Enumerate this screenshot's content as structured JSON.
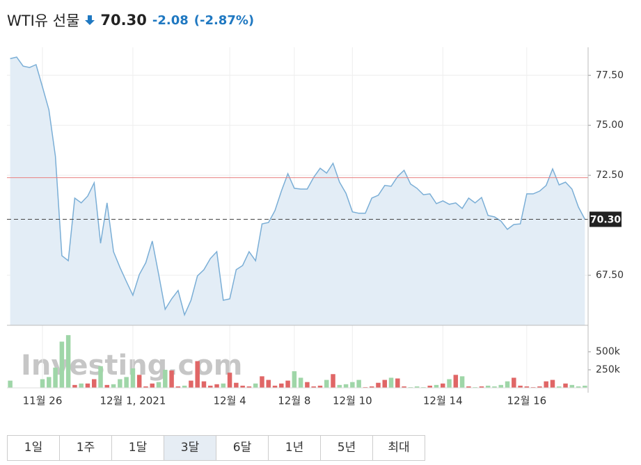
{
  "header": {
    "title": "WTI유 선물",
    "price": "70.30",
    "change": "-2.08",
    "change_pct": "(-2.87%)"
  },
  "chart_data": {
    "type": "area",
    "color": "#7aaed6",
    "fill": "#e3edf6",
    "categories": [
      null,
      null,
      null,
      null,
      null,
      "11월 26",
      null,
      null,
      null,
      null,
      null,
      null,
      null,
      null,
      null,
      null,
      null,
      null,
      null,
      "12월 1, 2021",
      null,
      null,
      null,
      null,
      null,
      null,
      null,
      null,
      null,
      null,
      null,
      null,
      null,
      null,
      "12월 4",
      null,
      null,
      null,
      null,
      null,
      null,
      null,
      null,
      null,
      "12월 8",
      null,
      null,
      null,
      null,
      null,
      null,
      null,
      null,
      "12월 10",
      null,
      null,
      null,
      null,
      null,
      null,
      null,
      null,
      null,
      null,
      null,
      null,
      null,
      "12월 14",
      null,
      null,
      null,
      null,
      null,
      null,
      null,
      null,
      null,
      null,
      null,
      null,
      "12월 16",
      null,
      null,
      null,
      null,
      null,
      null,
      null,
      null,
      null
    ],
    "values": [
      78.33,
      78.41,
      77.96,
      77.89,
      78.03,
      76.92,
      75.77,
      73.45,
      68.48,
      68.23,
      71.36,
      71.12,
      71.46,
      72.12,
      69.1,
      71.12,
      68.68,
      67.89,
      67.19,
      66.5,
      67.54,
      68.13,
      69.21,
      67.54,
      65.8,
      66.32,
      66.74,
      65.52,
      66.25,
      67.47,
      67.78,
      68.34,
      68.68,
      66.25,
      66.32,
      67.78,
      67.99,
      68.68,
      68.23,
      70.07,
      70.14,
      70.73,
      71.71,
      72.58,
      71.85,
      71.81,
      71.81,
      72.4,
      72.85,
      72.61,
      73.1,
      72.16,
      71.6,
      70.67,
      70.6,
      70.6,
      71.36,
      71.5,
      71.99,
      71.95,
      72.44,
      72.75,
      72.06,
      71.85,
      71.53,
      71.57,
      71.08,
      71.22,
      71.05,
      71.12,
      70.84,
      71.36,
      71.12,
      71.39,
      70.49,
      70.42,
      70.21,
      69.8,
      70.04,
      70.07,
      71.57,
      71.57,
      71.71,
      71.99,
      72.82,
      72.02,
      72.16,
      71.81,
      70.91,
      70.3
    ],
    "ylim": [
      65,
      78.9
    ],
    "yticks": [
      {
        "value": 67.5,
        "label": "67.50"
      },
      {
        "value": 72.5,
        "label": "72.50"
      },
      {
        "value": 75,
        "label": "75.00"
      },
      {
        "value": 77.5,
        "label": "77.50"
      }
    ],
    "grid": true,
    "previous_close": 72.38,
    "previous_close_color": "#e88080",
    "last_price": {
      "value": 70.3,
      "label": "70.30"
    },
    "watermark": "Investing.com",
    "volume": {
      "values": [
        100000,
        0,
        0,
        0,
        0,
        120000,
        150000,
        280000,
        640000,
        730000,
        40000,
        60000,
        60000,
        120000,
        300000,
        40000,
        50000,
        120000,
        150000,
        270000,
        180000,
        20000,
        60000,
        80000,
        250000,
        240000,
        20000,
        30000,
        100000,
        370000,
        90000,
        30000,
        50000,
        60000,
        210000,
        70000,
        30000,
        20000,
        60000,
        160000,
        110000,
        30000,
        60000,
        100000,
        230000,
        140000,
        80000,
        20000,
        30000,
        110000,
        190000,
        40000,
        50000,
        80000,
        110000,
        10000,
        20000,
        70000,
        110000,
        140000,
        130000,
        20000,
        10000,
        20000,
        10000,
        30000,
        40000,
        60000,
        120000,
        180000,
        160000,
        20000,
        10000,
        20000,
        30000,
        20000,
        40000,
        90000,
        140000,
        30000,
        20000,
        10000,
        20000,
        90000,
        110000,
        20000,
        60000,
        40000,
        20000,
        30000
      ],
      "up_color": "#e06666",
      "down_color": "#9fd6a8",
      "ylim": [
        0,
        770000
      ],
      "yticks": [
        {
          "value": 250000,
          "label": "250k"
        },
        {
          "value": 500000,
          "label": "500k"
        }
      ]
    }
  },
  "ranges": [
    "1일",
    "1주",
    "1달",
    "3달",
    "6달",
    "1년",
    "5년",
    "최대"
  ],
  "selected_range": "3달"
}
